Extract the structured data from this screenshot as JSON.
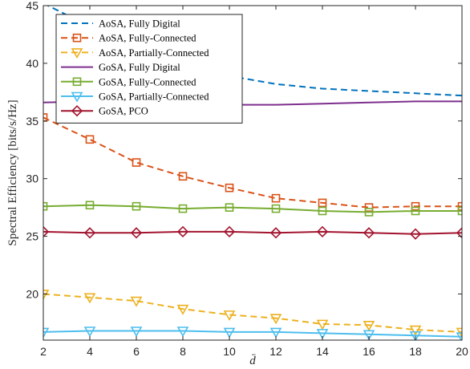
{
  "chart_data": {
    "type": "line",
    "title": "",
    "xlabel": "d̄",
    "ylabel": "Spectral Efficiency [bits/s/Hz]",
    "xlim": [
      2,
      20
    ],
    "ylim": [
      16,
      45
    ],
    "xticks": [
      2,
      4,
      6,
      8,
      10,
      12,
      14,
      16,
      18,
      20
    ],
    "yticks": [
      20,
      25,
      30,
      35,
      40,
      45
    ],
    "legend_position": "top-left",
    "x": [
      2,
      4,
      6,
      8,
      10,
      12,
      14,
      16,
      18,
      20
    ],
    "series": [
      {
        "name": "AoSA, Fully Digital",
        "values": [
          45.2,
          43.2,
          41.3,
          40.0,
          38.9,
          38.2,
          37.8,
          37.6,
          37.4,
          37.2
        ],
        "color": "#0072BD",
        "dash": "dashed",
        "marker": "none"
      },
      {
        "name": "AoSA, Fully-Connected",
        "values": [
          35.3,
          33.4,
          31.4,
          30.2,
          29.2,
          28.3,
          27.9,
          27.5,
          27.6,
          27.6
        ],
        "color": "#D95319",
        "dash": "dashed",
        "marker": "square"
      },
      {
        "name": "AoSA, Partially-Connected",
        "values": [
          20.0,
          19.7,
          19.4,
          18.7,
          18.2,
          17.9,
          17.4,
          17.3,
          16.9,
          16.7
        ],
        "color": "#EDB120",
        "dash": "dashed",
        "marker": "triangle-down"
      },
      {
        "name": "GoSA, Fully Digital",
        "values": [
          36.6,
          36.7,
          36.5,
          36.5,
          36.4,
          36.4,
          36.5,
          36.6,
          36.7,
          36.7
        ],
        "color": "#7E2F8E",
        "dash": "solid",
        "marker": "none"
      },
      {
        "name": "GoSA, Fully-Connected",
        "values": [
          27.6,
          27.7,
          27.6,
          27.4,
          27.5,
          27.4,
          27.2,
          27.1,
          27.2,
          27.2
        ],
        "color": "#77AC30",
        "dash": "solid",
        "marker": "square"
      },
      {
        "name": "GoSA, Partially-Connected",
        "values": [
          16.7,
          16.8,
          16.8,
          16.8,
          16.7,
          16.7,
          16.6,
          16.5,
          16.4,
          16.3
        ],
        "color": "#4DBEEE",
        "dash": "solid",
        "marker": "triangle-down"
      },
      {
        "name": "GoSA, PCO",
        "values": [
          25.4,
          25.3,
          25.3,
          25.4,
          25.4,
          25.3,
          25.4,
          25.3,
          25.2,
          25.3
        ],
        "color": "#A2142F",
        "dash": "solid",
        "marker": "diamond"
      }
    ]
  }
}
